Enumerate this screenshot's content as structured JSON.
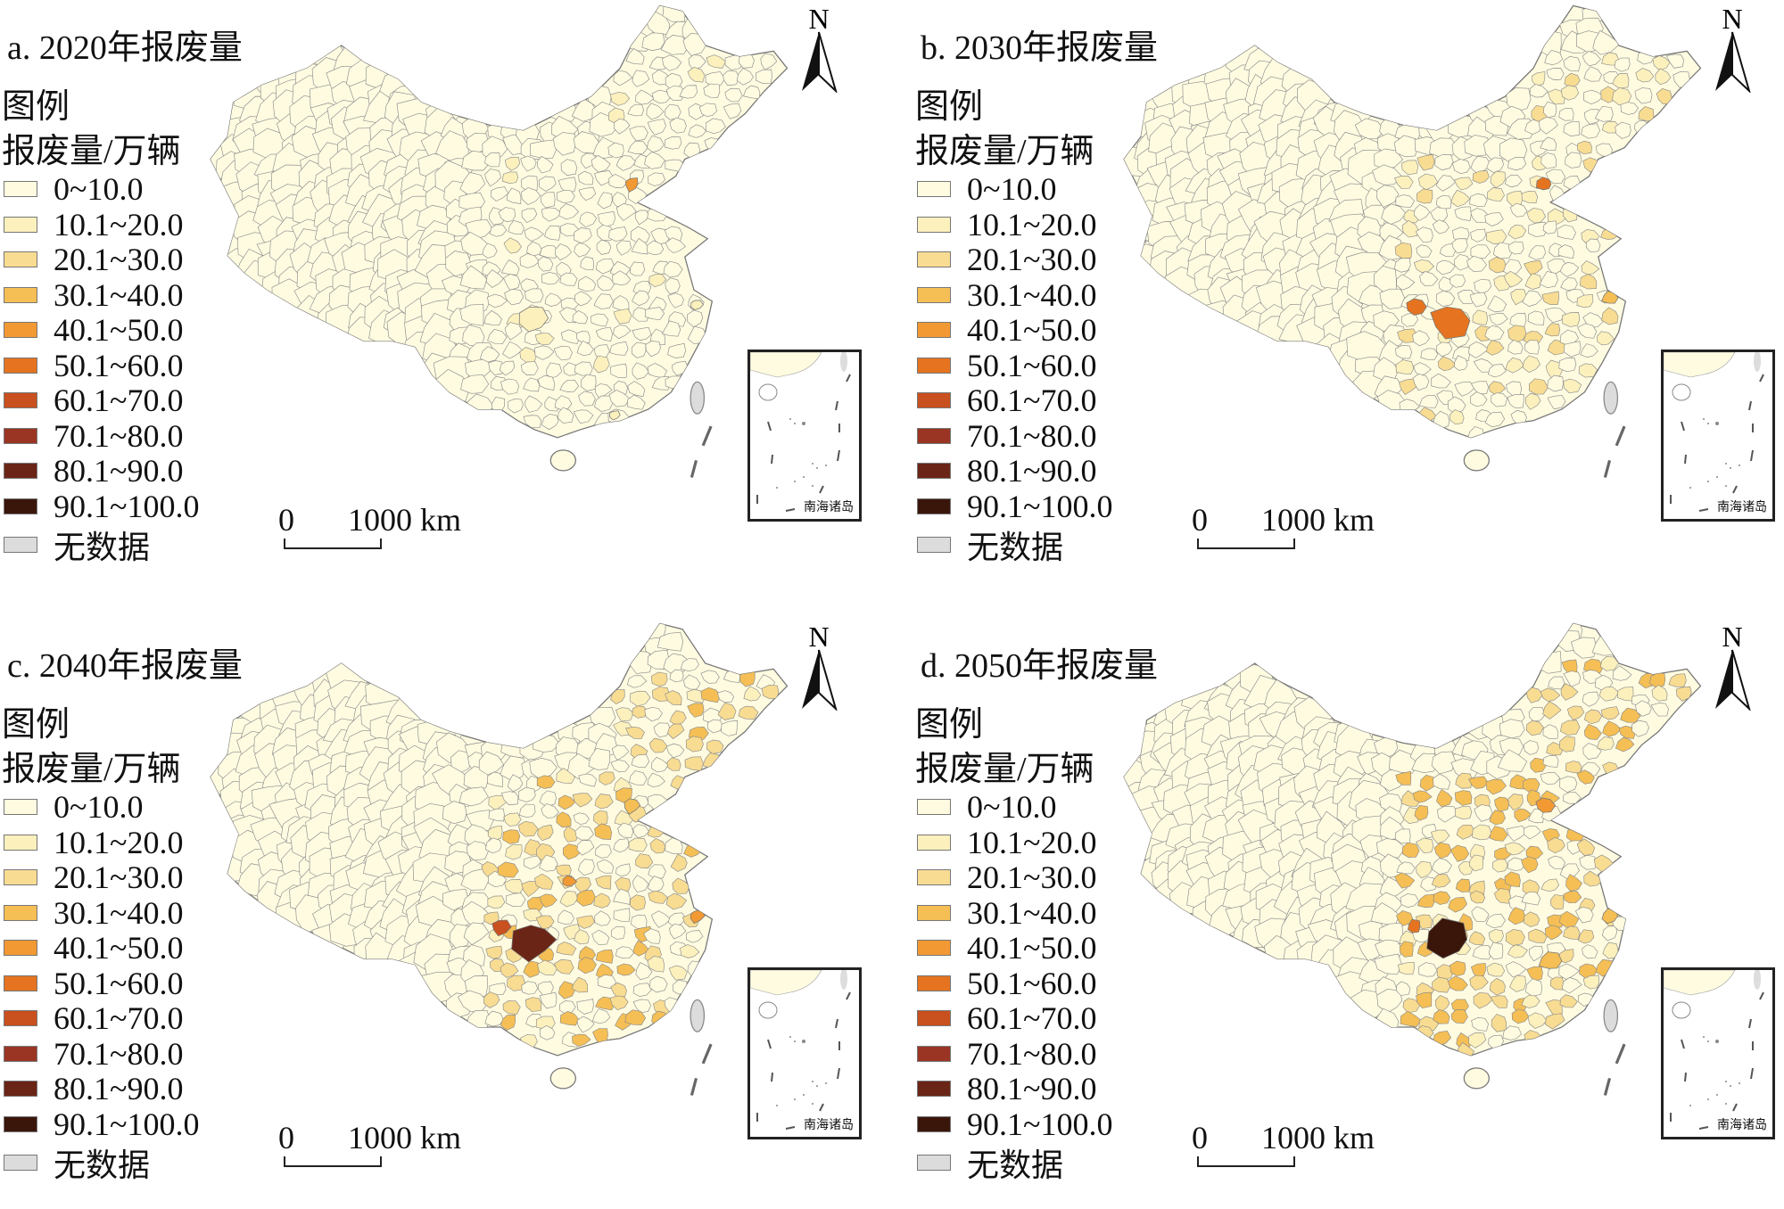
{
  "legend": {
    "title": "图例",
    "subtitle": "报废量/万辆",
    "items": [
      {
        "label": "0~10.0",
        "color": "#fefbe1"
      },
      {
        "label": "10.1~20.0",
        "color": "#fcf0bd"
      },
      {
        "label": "20.1~30.0",
        "color": "#f8dc92"
      },
      {
        "label": "30.1~40.0",
        "color": "#f5bf55"
      },
      {
        "label": "40.1~50.0",
        "color": "#f29933"
      },
      {
        "label": "50.1~60.0",
        "color": "#e5731f"
      },
      {
        "label": "60.1~70.0",
        "color": "#c9501f"
      },
      {
        "label": "70.1~80.0",
        "color": "#9a3524"
      },
      {
        "label": "80.1~90.0",
        "color": "#6b2516"
      },
      {
        "label": "90.1~100.0",
        "color": "#3a160a"
      },
      {
        "label": "无数据",
        "color": "#dcdcdc"
      }
    ]
  },
  "scale_bar": {
    "zero": "0",
    "distance": "1000 km"
  },
  "north_label": "N",
  "inset_label": "南海诸岛",
  "panels": [
    {
      "title": "a. 2020年报废量"
    },
    {
      "title": "b. 2030年报废量"
    },
    {
      "title": "c. 2040年报废量"
    },
    {
      "title": "d. 2050年报废量"
    }
  ]
}
